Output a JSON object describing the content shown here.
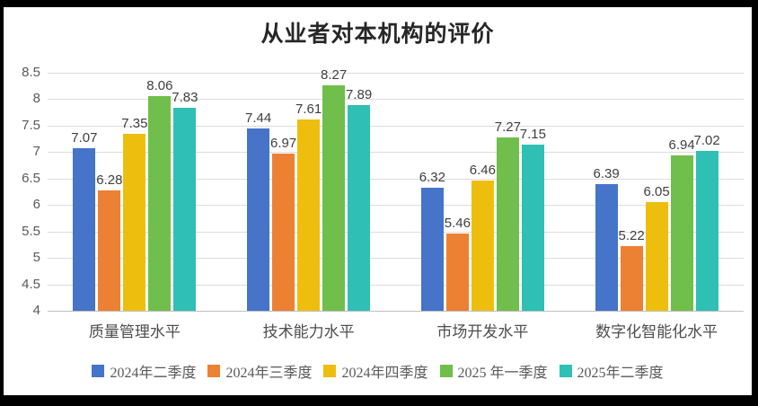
{
  "title": "从业者对本机构的评价",
  "colors": {
    "frame": "#000000",
    "background": "#FFFFFF",
    "title_text": "#262626",
    "axis_text": "#595959",
    "value_label_text": "#3F3F3F",
    "gridline": "#DCDCDC",
    "axis_line": "#C0C0C0"
  },
  "chart_data": {
    "type": "bar",
    "title": "从业者对本机构的评价",
    "categories": [
      "质量管理水平",
      "技术能力水平",
      "市场开发水平",
      "数字化智能化水平"
    ],
    "series": [
      {
        "name": "2024年二季度",
        "color": "#4574C8",
        "values": [
          7.07,
          7.44,
          6.32,
          6.39
        ]
      },
      {
        "name": "2024年三季度",
        "color": "#EC8033",
        "values": [
          6.28,
          6.97,
          5.46,
          5.22
        ]
      },
      {
        "name": "2024年四季度",
        "color": "#EEBE0F",
        "values": [
          7.35,
          7.61,
          6.46,
          6.05
        ]
      },
      {
        "name": "2025 年一季度",
        "color": "#70BE4B",
        "values": [
          8.06,
          8.27,
          7.27,
          6.94
        ]
      },
      {
        "name": "2025年二季度",
        "color": "#2FBFB4",
        "values": [
          7.83,
          7.89,
          7.15,
          7.02
        ]
      }
    ],
    "ylim": [
      4,
      8.5
    ],
    "ytick_step": 0.5,
    "ytick_labels": [
      "4",
      "4.5",
      "5",
      "5.5",
      "6",
      "6.5",
      "7",
      "7.5",
      "8",
      "8.5"
    ],
    "grid": true,
    "value_labels": true,
    "value_label_decimals": 2,
    "legend_position": "bottom"
  }
}
